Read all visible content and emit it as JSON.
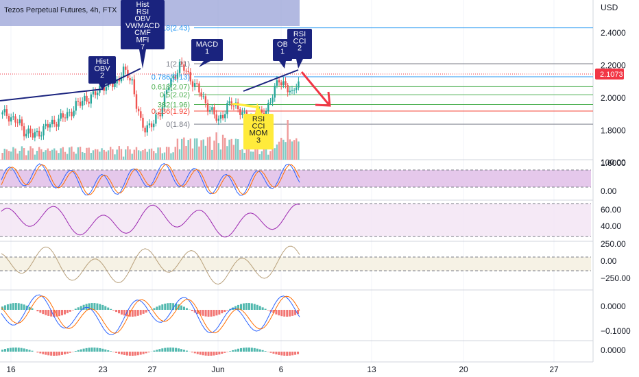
{
  "header": {
    "title": "Tezos Perpetual Futures, 4h, FTX",
    "currency": "USD"
  },
  "colors": {
    "up": "#26a69a",
    "down": "#ef5350",
    "trend": "#1a237e",
    "callout_navy": "#1a237e",
    "callout_yellow": "#ffeb3b",
    "last_price": "#f23645",
    "fib_line": "#787b86",
    "stoch_band": "#e1bee7",
    "rsi_band": "#f3e5f5",
    "cci_band": "#f5f0e1"
  },
  "price_axis": {
    "ticks": [
      "2.4000",
      "2.2000",
      "2.0000",
      "1.8000",
      "1.6000"
    ],
    "last_price": "2.1073",
    "ylim": [
      1.5,
      2.5
    ]
  },
  "fib": [
    {
      "label": "1.618(2.43)",
      "value": 2.43,
      "color": "#2196f3"
    },
    {
      "label": "1(2.21)",
      "value": 2.21,
      "color": "#787b86"
    },
    {
      "label": "0.786(2.13)",
      "value": 2.13,
      "color": "#2196f3"
    },
    {
      "label": "0.618(2.07)",
      "value": 2.07,
      "color": "#4caf50"
    },
    {
      "label": "0.5(2.02)",
      "value": 2.02,
      "color": "#4caf50"
    },
    {
      "label": "382(1.96)",
      "value": 1.96,
      "color": "#4caf50"
    },
    {
      "label": "0.236(1.92)",
      "value": 1.92,
      "color": "#f44336"
    },
    {
      "label": "0(1.84)",
      "value": 1.84,
      "color": "#787b86"
    }
  ],
  "callouts": [
    {
      "text": [
        "Hist",
        "RSI",
        "OBV",
        "VWMACD",
        "CMF",
        "MFI",
        "7"
      ],
      "style": "navy"
    },
    {
      "text": [
        "Hist",
        "OBV",
        "2"
      ],
      "style": "navy"
    },
    {
      "text": [
        "MACD",
        "1"
      ],
      "style": "navy"
    },
    {
      "text": [
        "OB",
        "1"
      ],
      "style": "navy"
    },
    {
      "text": [
        "RSI",
        "CCI",
        "2"
      ],
      "style": "navy"
    },
    {
      "text": [
        "RSI",
        "CCI",
        "MOM",
        "3"
      ],
      "style": "yellow"
    }
  ],
  "oscillators": [
    {
      "axis_labels": [
        "100.00",
        "0.00"
      ]
    },
    {
      "axis_labels": [
        "60.00",
        "40.00"
      ]
    },
    {
      "axis_labels": [
        "250.00",
        "0.00",
        "−250.00"
      ]
    },
    {
      "axis_labels": [
        "0.0000",
        "−0.1000"
      ]
    },
    {
      "axis_labels": [
        "0.0000"
      ]
    }
  ],
  "time_axis": {
    "labels": [
      "16",
      "23",
      "27",
      "Jun",
      "6",
      "13",
      "20",
      "27"
    ]
  },
  "chart_data": {
    "type": "candlestick",
    "title": "Tezos Perpetual Futures, 4h, FTX",
    "ylim": [
      1.5,
      2.5
    ],
    "x_labels": [
      "16",
      "23",
      "27",
      "Jun",
      "6",
      "13",
      "20",
      "27"
    ],
    "price_path": [
      1.9,
      1.9,
      1.88,
      1.86,
      1.84,
      1.8,
      1.79,
      1.77,
      1.78,
      1.8,
      1.82,
      1.84,
      1.85,
      1.87,
      1.88,
      1.9,
      1.92,
      1.95,
      1.97,
      2.0,
      1.99,
      2.01,
      2.05,
      2.08,
      2.06,
      2.1,
      2.09,
      2.12,
      2.16,
      2.15,
      2.1,
      1.95,
      1.85,
      1.82,
      1.83,
      1.84,
      1.9,
      1.95,
      2.05,
      2.1,
      2.15,
      2.2,
      2.18,
      2.14,
      2.1,
      2.06,
      2.02,
      1.97,
      1.93,
      1.89,
      1.87,
      1.9,
      1.94,
      1.97,
      1.96,
      1.92,
      1.88,
      1.87,
      1.88,
      1.89,
      1.9,
      1.93,
      1.98,
      2.05,
      2.12,
      2.09,
      2.05,
      2.02,
      2.1
    ]
  }
}
